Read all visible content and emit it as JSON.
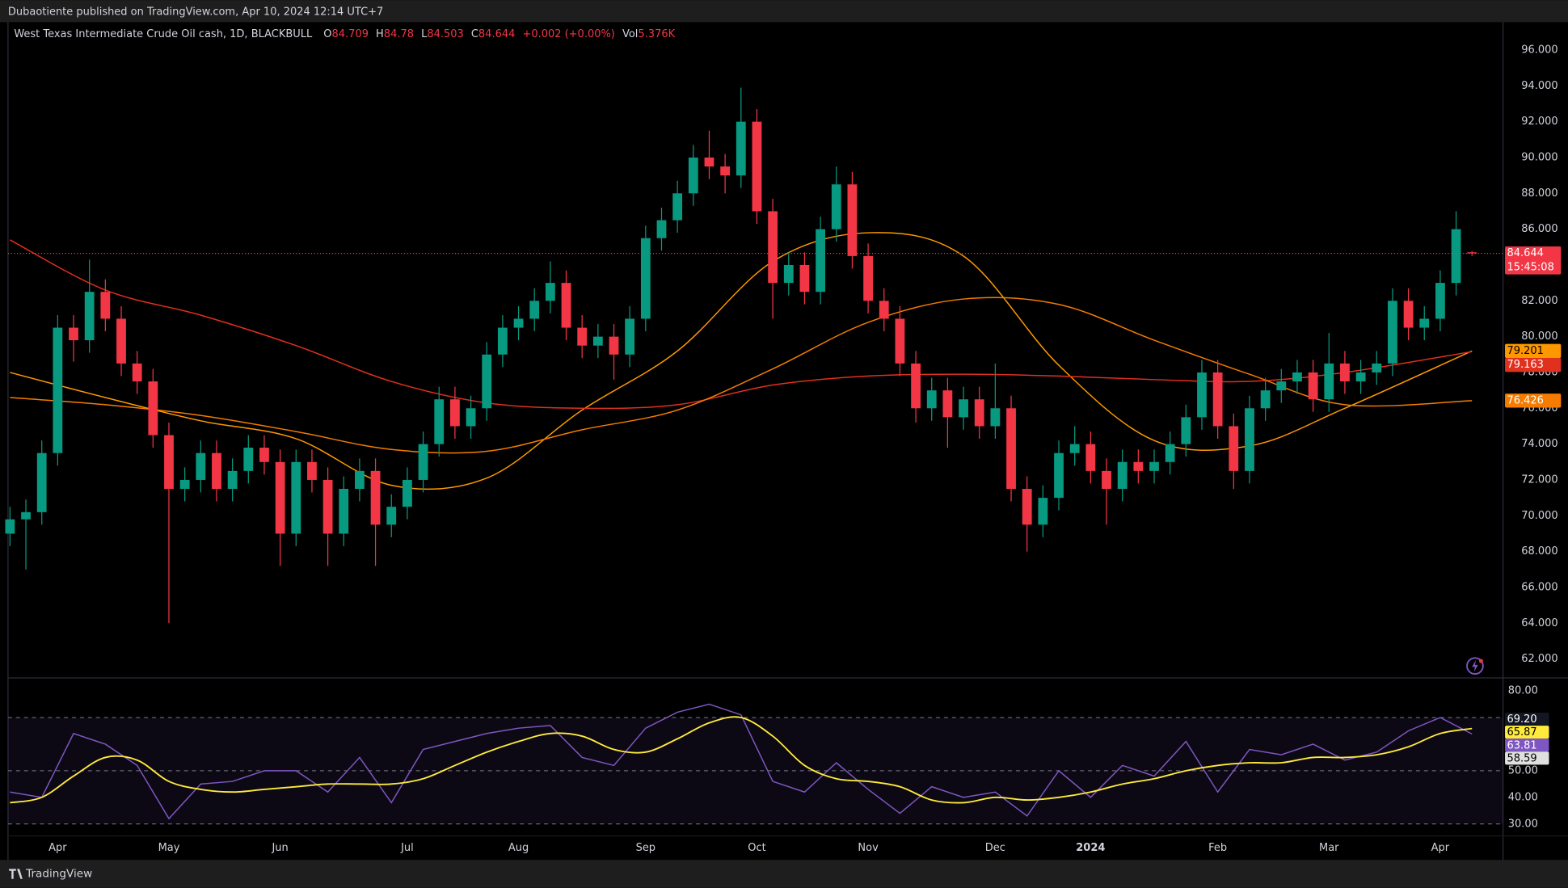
{
  "header": {
    "text": "Dubaotiente published on TradingView.com, Apr 10, 2024 12:14 UTC+7"
  },
  "footer": {
    "brand": "TradingView"
  },
  "chart_data": [
    {
      "type": "candlestick",
      "title": "West Texas Intermediate Crude Oil cash, 1D, BLACKBULL",
      "ohlc_letters": [
        "O",
        "H",
        "L",
        "C"
      ],
      "change": "+0.002 (+0.00%)",
      "volume_label": "Vol",
      "volume": "5.376K",
      "countdown": "15:45:08",
      "up_color": "#089981",
      "down_color": "#f23645",
      "categories": [
        null,
        null,
        null,
        "Apr",
        null,
        null,
        null,
        null,
        null,
        null,
        "May",
        null,
        null,
        null,
        null,
        null,
        null,
        "Jun",
        null,
        null,
        null,
        null,
        null,
        null,
        null,
        "Jul",
        null,
        null,
        null,
        null,
        null,
        null,
        "Aug",
        null,
        null,
        null,
        null,
        null,
        null,
        null,
        "Sep",
        null,
        null,
        null,
        null,
        null,
        null,
        "Oct",
        null,
        null,
        null,
        null,
        null,
        null,
        "Nov",
        null,
        null,
        null,
        null,
        null,
        null,
        null,
        "Dec",
        null,
        null,
        null,
        null,
        null,
        "2024",
        null,
        null,
        null,
        null,
        null,
        null,
        null,
        "Feb",
        null,
        null,
        null,
        null,
        null,
        null,
        "Mar",
        null,
        null,
        null,
        null,
        null,
        null,
        "Apr",
        null,
        null
      ],
      "open": [
        69.0,
        69.8,
        70.2,
        73.5,
        80.5,
        79.8,
        82.5,
        81.0,
        78.5,
        77.5,
        74.5,
        71.5,
        72.0,
        73.5,
        71.5,
        72.5,
        73.8,
        73.0,
        69.0,
        73.0,
        72.0,
        69.0,
        71.5,
        72.5,
        69.5,
        70.5,
        72.0,
        74.0,
        76.5,
        75.0,
        76.0,
        79.0,
        80.5,
        81.0,
        82.0,
        83.0,
        80.5,
        79.5,
        80.0,
        79.0,
        81.0,
        85.5,
        86.5,
        88.0,
        90.0,
        89.5,
        89.0,
        92.0,
        87.0,
        83.0,
        84.0,
        82.5,
        86.0,
        88.5,
        84.5,
        82.0,
        81.0,
        78.5,
        76.0,
        77.0,
        75.5,
        76.5,
        75.0,
        76.0,
        71.5,
        69.5,
        71.0,
        73.5,
        74.0,
        72.5,
        71.5,
        73.0,
        72.5,
        73.0,
        74.0,
        75.5,
        78.0,
        75.0,
        72.5,
        76.0,
        77.0,
        77.5,
        78.0,
        76.5,
        78.5,
        77.5,
        78.0,
        78.5,
        82.0,
        80.5,
        81.0,
        83.0,
        84.709
      ],
      "high": [
        70.5,
        70.9,
        74.2,
        81.2,
        81.2,
        84.3,
        83.2,
        81.7,
        79.2,
        78.2,
        75.2,
        72.7,
        74.2,
        74.2,
        73.2,
        74.5,
        74.5,
        73.7,
        73.7,
        73.7,
        72.7,
        72.2,
        73.2,
        73.2,
        71.2,
        72.7,
        74.7,
        77.2,
        77.2,
        76.7,
        79.7,
        81.2,
        81.7,
        82.7,
        84.2,
        83.7,
        81.2,
        80.7,
        80.7,
        81.7,
        86.2,
        87.2,
        88.7,
        90.7,
        91.5,
        90.2,
        93.9,
        92.7,
        87.7,
        84.7,
        84.7,
        86.7,
        89.5,
        89.2,
        85.2,
        82.7,
        81.7,
        79.2,
        77.7,
        77.7,
        77.2,
        77.2,
        78.5,
        76.7,
        72.2,
        71.7,
        74.2,
        75.0,
        74.7,
        73.2,
        73.7,
        73.7,
        73.7,
        74.7,
        76.2,
        78.7,
        78.7,
        75.7,
        76.7,
        77.7,
        78.2,
        78.7,
        78.7,
        80.2,
        79.2,
        78.7,
        79.2,
        82.7,
        82.7,
        81.7,
        83.7,
        87.0,
        84.78
      ],
      "low": [
        68.3,
        67.0,
        69.5,
        72.8,
        78.6,
        79.1,
        80.3,
        77.8,
        76.8,
        73.8,
        64.0,
        70.8,
        71.3,
        70.8,
        70.8,
        71.8,
        72.3,
        67.2,
        68.3,
        71.3,
        67.2,
        68.3,
        70.8,
        67.2,
        68.8,
        69.8,
        71.3,
        73.3,
        74.3,
        74.3,
        75.3,
        78.3,
        79.8,
        80.3,
        81.3,
        79.8,
        78.8,
        78.8,
        77.6,
        78.3,
        80.3,
        84.8,
        85.8,
        87.3,
        88.8,
        88.0,
        88.3,
        86.3,
        81.0,
        82.3,
        81.8,
        81.8,
        85.3,
        83.8,
        81.3,
        80.3,
        77.8,
        75.2,
        75.3,
        73.8,
        74.8,
        74.3,
        74.3,
        70.8,
        68.0,
        68.8,
        70.3,
        72.8,
        71.8,
        69.5,
        70.8,
        71.8,
        71.8,
        72.3,
        73.3,
        74.8,
        74.3,
        71.5,
        71.8,
        75.3,
        76.3,
        76.8,
        75.8,
        75.8,
        76.8,
        76.8,
        77.3,
        77.8,
        79.8,
        79.8,
        80.3,
        82.3,
        84.503
      ],
      "close": [
        69.8,
        70.2,
        73.5,
        80.5,
        79.8,
        82.5,
        81.0,
        78.5,
        77.5,
        74.5,
        71.5,
        72.0,
        73.5,
        71.5,
        72.5,
        73.8,
        73.0,
        69.0,
        73.0,
        72.0,
        69.0,
        71.5,
        72.5,
        69.5,
        70.5,
        72.0,
        74.0,
        76.5,
        75.0,
        76.0,
        79.0,
        80.5,
        81.0,
        82.0,
        83.0,
        80.5,
        79.5,
        80.0,
        79.0,
        81.0,
        85.5,
        86.5,
        88.0,
        90.0,
        89.5,
        89.0,
        92.0,
        87.0,
        83.0,
        84.0,
        82.5,
        86.0,
        88.5,
        84.5,
        82.0,
        81.0,
        78.5,
        76.0,
        77.0,
        75.5,
        76.5,
        75.0,
        76.0,
        71.5,
        69.5,
        71.0,
        73.5,
        74.0,
        72.5,
        71.5,
        73.0,
        72.5,
        73.0,
        74.0,
        75.5,
        78.0,
        75.0,
        72.5,
        76.0,
        77.0,
        77.5,
        78.0,
        76.5,
        78.5,
        77.5,
        78.0,
        78.5,
        82.0,
        80.5,
        81.0,
        83.0,
        86.0,
        84.644
      ],
      "series": [
        {
          "color": "#ff9800",
          "x": [
            0,
            6,
            12,
            18,
            24,
            30,
            36,
            42,
            48,
            54,
            60,
            66,
            72,
            78,
            84,
            92
          ],
          "values": [
            78.0,
            76.6,
            75.3,
            74.3,
            71.7,
            72.1,
            75.9,
            79.2,
            84.2,
            85.8,
            84.5,
            78.4,
            74.2,
            73.9,
            76.0,
            79.201
          ]
        },
        {
          "color": "#e0301e",
          "x": [
            0,
            6,
            12,
            18,
            24,
            30,
            36,
            42,
            48,
            54,
            60,
            66,
            72,
            78,
            84,
            92
          ],
          "values": [
            85.4,
            82.6,
            81.2,
            79.5,
            77.5,
            76.3,
            76.0,
            76.2,
            77.3,
            77.8,
            77.9,
            77.8,
            77.6,
            77.5,
            78.0,
            79.163
          ]
        },
        {
          "color": "#f57c00",
          "x": [
            0,
            6,
            12,
            18,
            24,
            30,
            36,
            42,
            48,
            54,
            60,
            66,
            72,
            78,
            84,
            92
          ],
          "values": [
            76.6,
            76.2,
            75.6,
            74.7,
            73.7,
            73.6,
            74.8,
            75.9,
            78.2,
            80.8,
            82.1,
            81.8,
            79.8,
            77.9,
            76.2,
            76.426
          ]
        }
      ],
      "ylim": [
        61.0,
        97.56
      ],
      "yticks": [
        {
          "value": 62,
          "label": "62.000"
        },
        {
          "value": 64,
          "label": "64.000"
        },
        {
          "value": 66,
          "label": "66.000"
        },
        {
          "value": 68,
          "label": "68.000"
        },
        {
          "value": 70,
          "label": "70.000"
        },
        {
          "value": 72,
          "label": "72.000"
        },
        {
          "value": 74,
          "label": "74.000"
        },
        {
          "value": 76,
          "label": "76.000"
        },
        {
          "value": 78,
          "label": "78.000"
        },
        {
          "value": 80,
          "label": "80.000"
        },
        {
          "value": 82,
          "label": "82.000"
        },
        {
          "value": 84,
          "label": "84.000"
        },
        {
          "value": 86,
          "label": "86.000"
        },
        {
          "value": 88,
          "label": "88.000"
        },
        {
          "value": 90,
          "label": "90.000"
        },
        {
          "value": 92,
          "label": "92.000"
        },
        {
          "value": 94,
          "label": "94.000"
        },
        {
          "value": 96,
          "label": "96.000"
        }
      ]
    },
    {
      "type": "line",
      "x": [
        0,
        2,
        4,
        6,
        8,
        10,
        12,
        14,
        16,
        18,
        20,
        22,
        24,
        26,
        28,
        30,
        32,
        34,
        36,
        38,
        40,
        42,
        44,
        46,
        48,
        50,
        52,
        54,
        56,
        58,
        60,
        62,
        64,
        66,
        68,
        70,
        72,
        74,
        76,
        78,
        80,
        82,
        84,
        86,
        88,
        90,
        92
      ],
      "series": [
        {
          "color": "#7e57c2",
          "values": [
            42,
            40,
            64,
            60,
            52,
            32,
            45,
            46,
            50,
            50,
            42,
            55,
            38,
            58,
            61,
            64,
            66,
            67,
            55,
            52,
            66,
            72,
            75,
            71,
            46,
            42,
            53,
            43,
            34,
            44,
            40,
            42,
            33,
            50,
            40,
            52,
            48,
            61,
            42,
            58,
            56,
            60,
            54,
            57,
            65,
            70,
            63.81
          ]
        },
        {
          "color": "#ffeb3b",
          "values": [
            38,
            40,
            48,
            55,
            54,
            46,
            43,
            42,
            43,
            44,
            45,
            45,
            45,
            47,
            52,
            57,
            61,
            64,
            63,
            58,
            57,
            62,
            68,
            70,
            63,
            52,
            47,
            46,
            44,
            39,
            38,
            40,
            39,
            40,
            42,
            45,
            47,
            50,
            52,
            53,
            53,
            55,
            55,
            56,
            59,
            64,
            65.87
          ]
        }
      ],
      "levels": [
        70,
        50,
        30
      ],
      "extra_labels": [
        {
          "value": 69.2,
          "label": "69.20"
        },
        {
          "value": 58.59,
          "label": "58.59"
        }
      ],
      "ylim": [
        25.9,
        84.5
      ],
      "yticks": [
        {
          "value": 80,
          "label": "80.00"
        },
        {
          "value": 50,
          "label": "50.00"
        },
        {
          "value": 40,
          "label": "40.00"
        },
        {
          "value": 30,
          "label": "30.00"
        }
      ]
    }
  ]
}
